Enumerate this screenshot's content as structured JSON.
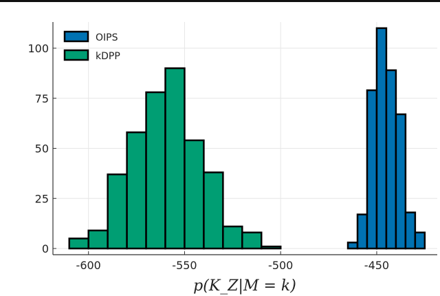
{
  "chart_data": {
    "type": "bar",
    "subtype": "histogram",
    "title": "",
    "xlabel": "p(K_Z|M = k)",
    "ylabel": "",
    "xlim": [
      -618.5,
      -418.5
    ],
    "ylim": [
      0,
      113
    ],
    "xticks": [
      -600,
      -550,
      -500,
      -450
    ],
    "xtick_labels": [
      "-600",
      "-550",
      "-500",
      "-450"
    ],
    "yticks": [
      0,
      25,
      50,
      75,
      100
    ],
    "ytick_labels": [
      "0",
      "25",
      "50",
      "75",
      "100"
    ],
    "grid": true,
    "legend_position": "top-left",
    "series": [
      {
        "name": "OIPS",
        "color": "#0072B2",
        "bin_edges": [
          -465,
          -460,
          -455,
          -450,
          -445,
          -440,
          -435,
          -430,
          -425
        ],
        "counts": [
          3,
          17,
          79,
          110,
          89,
          67,
          18,
          8
        ]
      },
      {
        "name": "kDPP",
        "color": "#009E73",
        "bin_edges": [
          -610,
          -600,
          -590,
          -580,
          -570,
          -560,
          -550,
          -540,
          -530,
          -520,
          -510,
          -500
        ],
        "counts": [
          5,
          9,
          37,
          58,
          78,
          90,
          54,
          38,
          11,
          8,
          1
        ]
      }
    ]
  }
}
